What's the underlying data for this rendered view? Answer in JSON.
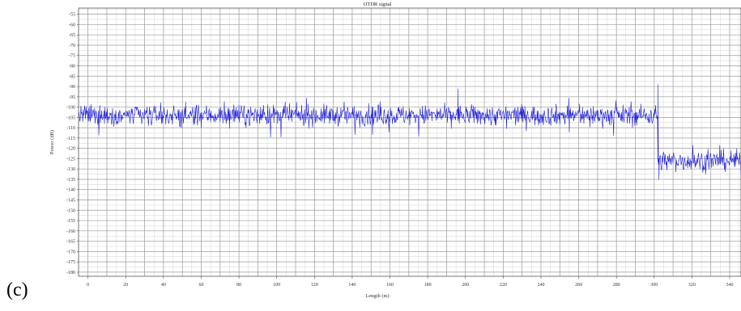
{
  "panel_label": "(c)",
  "colors": {
    "signal": "#1f1fd6",
    "grid_major": "#9a9a9a",
    "grid_minor": "#d4d4d4",
    "frame": "#555555"
  },
  "chart_data": {
    "type": "line",
    "title": "OTDR signal",
    "xlabel": "Length (m)",
    "ylabel": "Power (dB)",
    "xlim": [
      -5,
      346
    ],
    "ylim": [
      -182,
      -52
    ],
    "x_ticks": [
      0,
      20,
      40,
      60,
      80,
      100,
      120,
      140,
      160,
      180,
      200,
      220,
      240,
      260,
      280,
      300,
      320,
      340
    ],
    "x_tick_labels": [
      "0",
      "20",
      "40",
      "60",
      "80",
      "100",
      "120",
      "140",
      "160",
      "180",
      "200",
      "220",
      "240",
      "260",
      "280",
      "300",
      "320",
      "340"
    ],
    "y_ticks": [
      -55,
      -60,
      -65,
      -70,
      -75,
      -80,
      -85,
      -90,
      -95,
      -100,
      -105,
      -110,
      -115,
      -120,
      -125,
      -130,
      -135,
      -140,
      -145,
      -150,
      -155,
      -160,
      -165,
      -170,
      -175,
      -180
    ],
    "y_tick_labels": [
      "-55",
      "-60",
      "-65",
      "-70",
      "-75",
      "-80",
      "-85",
      "-90",
      "-95",
      "-100",
      "-105",
      "-110",
      "-115",
      "-120",
      "-125",
      "-130",
      "-135",
      "-140",
      "-145",
      "-150",
      "-155",
      "-160",
      "-165",
      "-170",
      "-175",
      "-180"
    ],
    "grid": true,
    "series": [
      {
        "x_start": -5,
        "x_step": 0.25,
        "segments": [
          {
            "x_from": -5,
            "x_to": 302,
            "mean": -104,
            "spread": 4.5
          },
          {
            "x_from": 302,
            "x_to": 346,
            "mean": -126,
            "spread": 4.5
          }
        ],
        "spikes": [
          {
            "x": 196,
            "y": -91
          },
          {
            "x": 302,
            "y": -89
          },
          {
            "x": 302.5,
            "y": -135
          }
        ]
      }
    ]
  }
}
